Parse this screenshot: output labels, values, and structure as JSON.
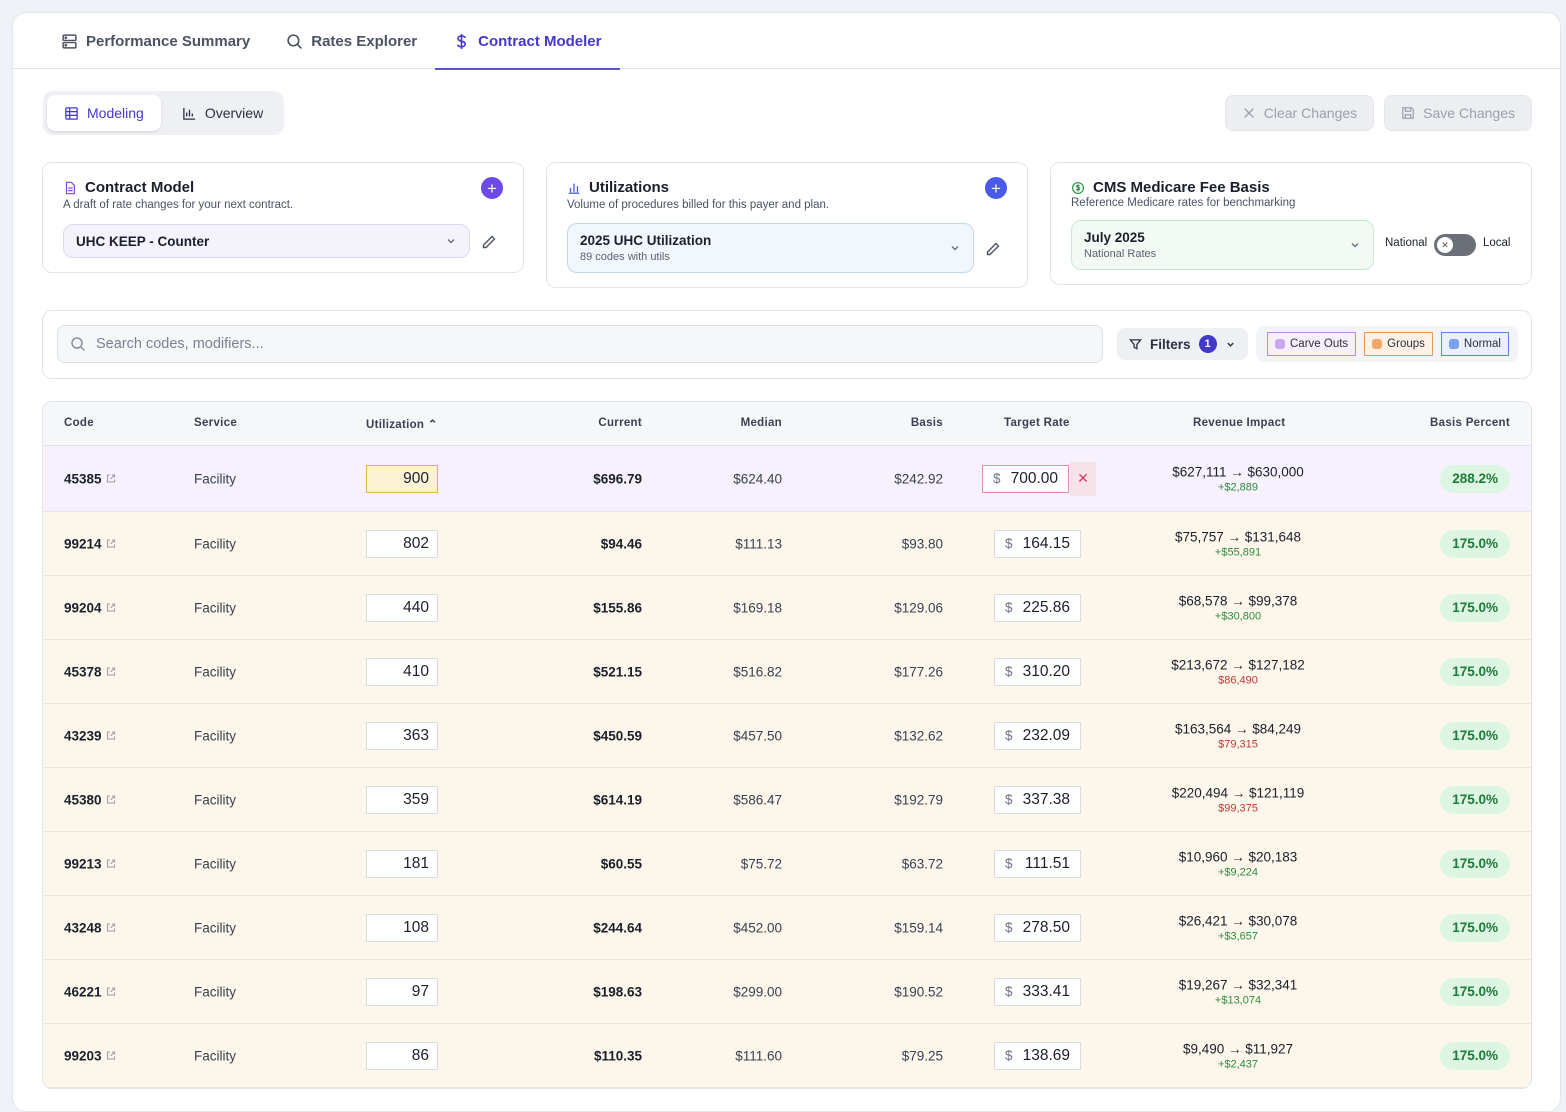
{
  "nav": {
    "tabs": [
      {
        "label": "Performance Summary"
      },
      {
        "label": "Rates Explorer"
      },
      {
        "label": "Contract Modeler"
      }
    ]
  },
  "toolbar": {
    "modeling_label": "Modeling",
    "overview_label": "Overview",
    "clear_label": "Clear Changes",
    "save_label": "Save Changes"
  },
  "contract_model": {
    "title": "Contract Model",
    "desc": "A draft of rate changes for your next contract.",
    "selected": "UHC KEEP - Counter"
  },
  "utilizations": {
    "title": "Utilizations",
    "desc": "Volume of procedures billed for this payer and plan.",
    "selected": "2025 UHC Utilization",
    "selected_sub": "89 codes with utils"
  },
  "cms": {
    "title": "CMS Medicare Fee Basis",
    "desc": "Reference Medicare rates for benchmarking",
    "selected": "July 2025",
    "selected_sub": "National Rates",
    "toggle_left": "National",
    "toggle_right": "Local"
  },
  "search": {
    "placeholder": "Search codes, modifiers..."
  },
  "filters": {
    "label": "Filters",
    "count": "1"
  },
  "legend": {
    "carve": "Carve Outs",
    "groups": "Groups",
    "normal": "Normal"
  },
  "colors": {
    "accent": "#4338ca",
    "plus": "#6d4ae8",
    "carve": "#c9a8f0",
    "groups": "#f0a86a",
    "normal": "#7ea0f0"
  },
  "table": {
    "headers": {
      "code": "Code",
      "service": "Service",
      "utilization": "Utilization ⌃",
      "current": "Current",
      "median": "Median",
      "basis": "Basis",
      "target": "Target Rate",
      "revenue": "Revenue Impact",
      "basis_pct": "Basis Percent"
    },
    "rows": [
      {
        "code": "45385",
        "service": "Facility",
        "util": "900",
        "current": "$696.79",
        "median": "$624.40",
        "basis": "$242.92",
        "target": "700.00",
        "rev": "$627,111 → $630,000",
        "delta": "+$2,889",
        "pct": "288.2%"
      },
      {
        "code": "99214",
        "service": "Facility",
        "util": "802",
        "current": "$94.46",
        "median": "$111.13",
        "basis": "$93.80",
        "target": "164.15",
        "rev": "$75,757 → $131,648",
        "delta": "+$55,891",
        "pct": "175.0%"
      },
      {
        "code": "99204",
        "service": "Facility",
        "util": "440",
        "current": "$155.86",
        "median": "$169.18",
        "basis": "$129.06",
        "target": "225.86",
        "rev": "$68,578 → $99,378",
        "delta": "+$30,800",
        "pct": "175.0%"
      },
      {
        "code": "45378",
        "service": "Facility",
        "util": "410",
        "current": "$521.15",
        "median": "$516.82",
        "basis": "$177.26",
        "target": "310.20",
        "rev": "$213,672 → $127,182",
        "delta": "$86,490",
        "pct": "175.0%"
      },
      {
        "code": "43239",
        "service": "Facility",
        "util": "363",
        "current": "$450.59",
        "median": "$457.50",
        "basis": "$132.62",
        "target": "232.09",
        "rev": "$163,564 → $84,249",
        "delta": "$79,315",
        "pct": "175.0%"
      },
      {
        "code": "45380",
        "service": "Facility",
        "util": "359",
        "current": "$614.19",
        "median": "$586.47",
        "basis": "$192.79",
        "target": "337.38",
        "rev": "$220,494 → $121,119",
        "delta": "$99,375",
        "pct": "175.0%"
      },
      {
        "code": "99213",
        "service": "Facility",
        "util": "181",
        "current": "$60.55",
        "median": "$75.72",
        "basis": "$63.72",
        "target": "111.51",
        "rev": "$10,960 → $20,183",
        "delta": "+$9,224",
        "pct": "175.0%"
      },
      {
        "code": "43248",
        "service": "Facility",
        "util": "108",
        "current": "$244.64",
        "median": "$452.00",
        "basis": "$159.14",
        "target": "278.50",
        "rev": "$26,421 → $30,078",
        "delta": "+$3,657",
        "pct": "175.0%"
      },
      {
        "code": "46221",
        "service": "Facility",
        "util": "97",
        "current": "$198.63",
        "median": "$299.00",
        "basis": "$190.52",
        "target": "333.41",
        "rev": "$19,267 → $32,341",
        "delta": "+$13,074",
        "pct": "175.0%"
      },
      {
        "code": "99203",
        "service": "Facility",
        "util": "86",
        "current": "$110.35",
        "median": "$111.60",
        "basis": "$79.25",
        "target": "138.69",
        "rev": "$9,490 → $11,927",
        "delta": "+$2,437",
        "pct": "175.0%"
      }
    ]
  }
}
